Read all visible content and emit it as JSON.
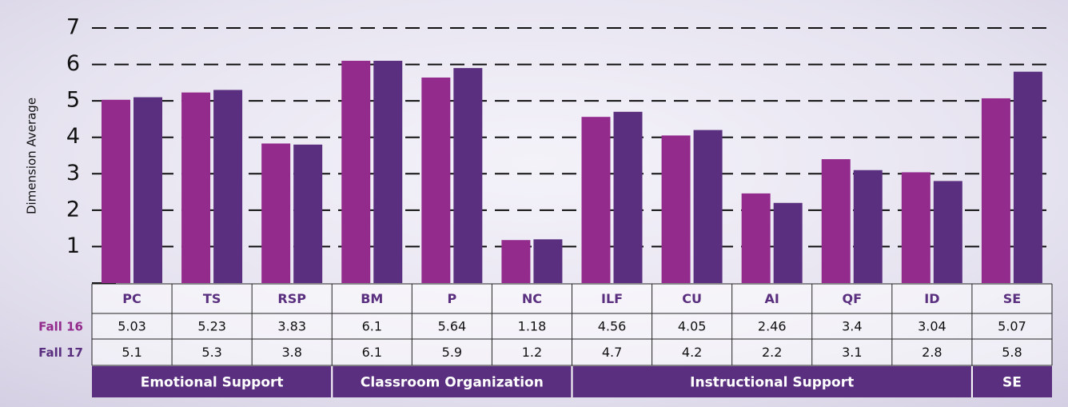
{
  "chart_data": {
    "type": "bar",
    "y_label": "Dimension Average",
    "categories": [
      "PC",
      "TS",
      "RSP",
      "BM",
      "P",
      "NC",
      "ILF",
      "CU",
      "AI",
      "QF",
      "ID",
      "SE"
    ],
    "series": [
      {
        "name": "Fall 16",
        "color": "#932b8d",
        "values": [
          5.03,
          5.23,
          3.83,
          6.1,
          5.64,
          1.18,
          4.56,
          4.05,
          2.46,
          3.4,
          3.04,
          5.07
        ]
      },
      {
        "name": "Fall 17",
        "color": "#5a2f7f",
        "values": [
          5.1,
          5.3,
          3.8,
          6.1,
          5.9,
          1.2,
          4.7,
          4.2,
          2.2,
          3.1,
          2.8,
          5.8
        ]
      }
    ],
    "groups": [
      {
        "name": "Emotional Support",
        "span": 3
      },
      {
        "name": "Classroom Organization",
        "span": 3
      },
      {
        "name": "Instructional Support",
        "span": 5
      },
      {
        "name": "SE",
        "span": 1
      }
    ],
    "ylim": [
      0,
      7
    ],
    "yticks": [
      1,
      2,
      3,
      4,
      5,
      6,
      7
    ],
    "grid": true
  }
}
